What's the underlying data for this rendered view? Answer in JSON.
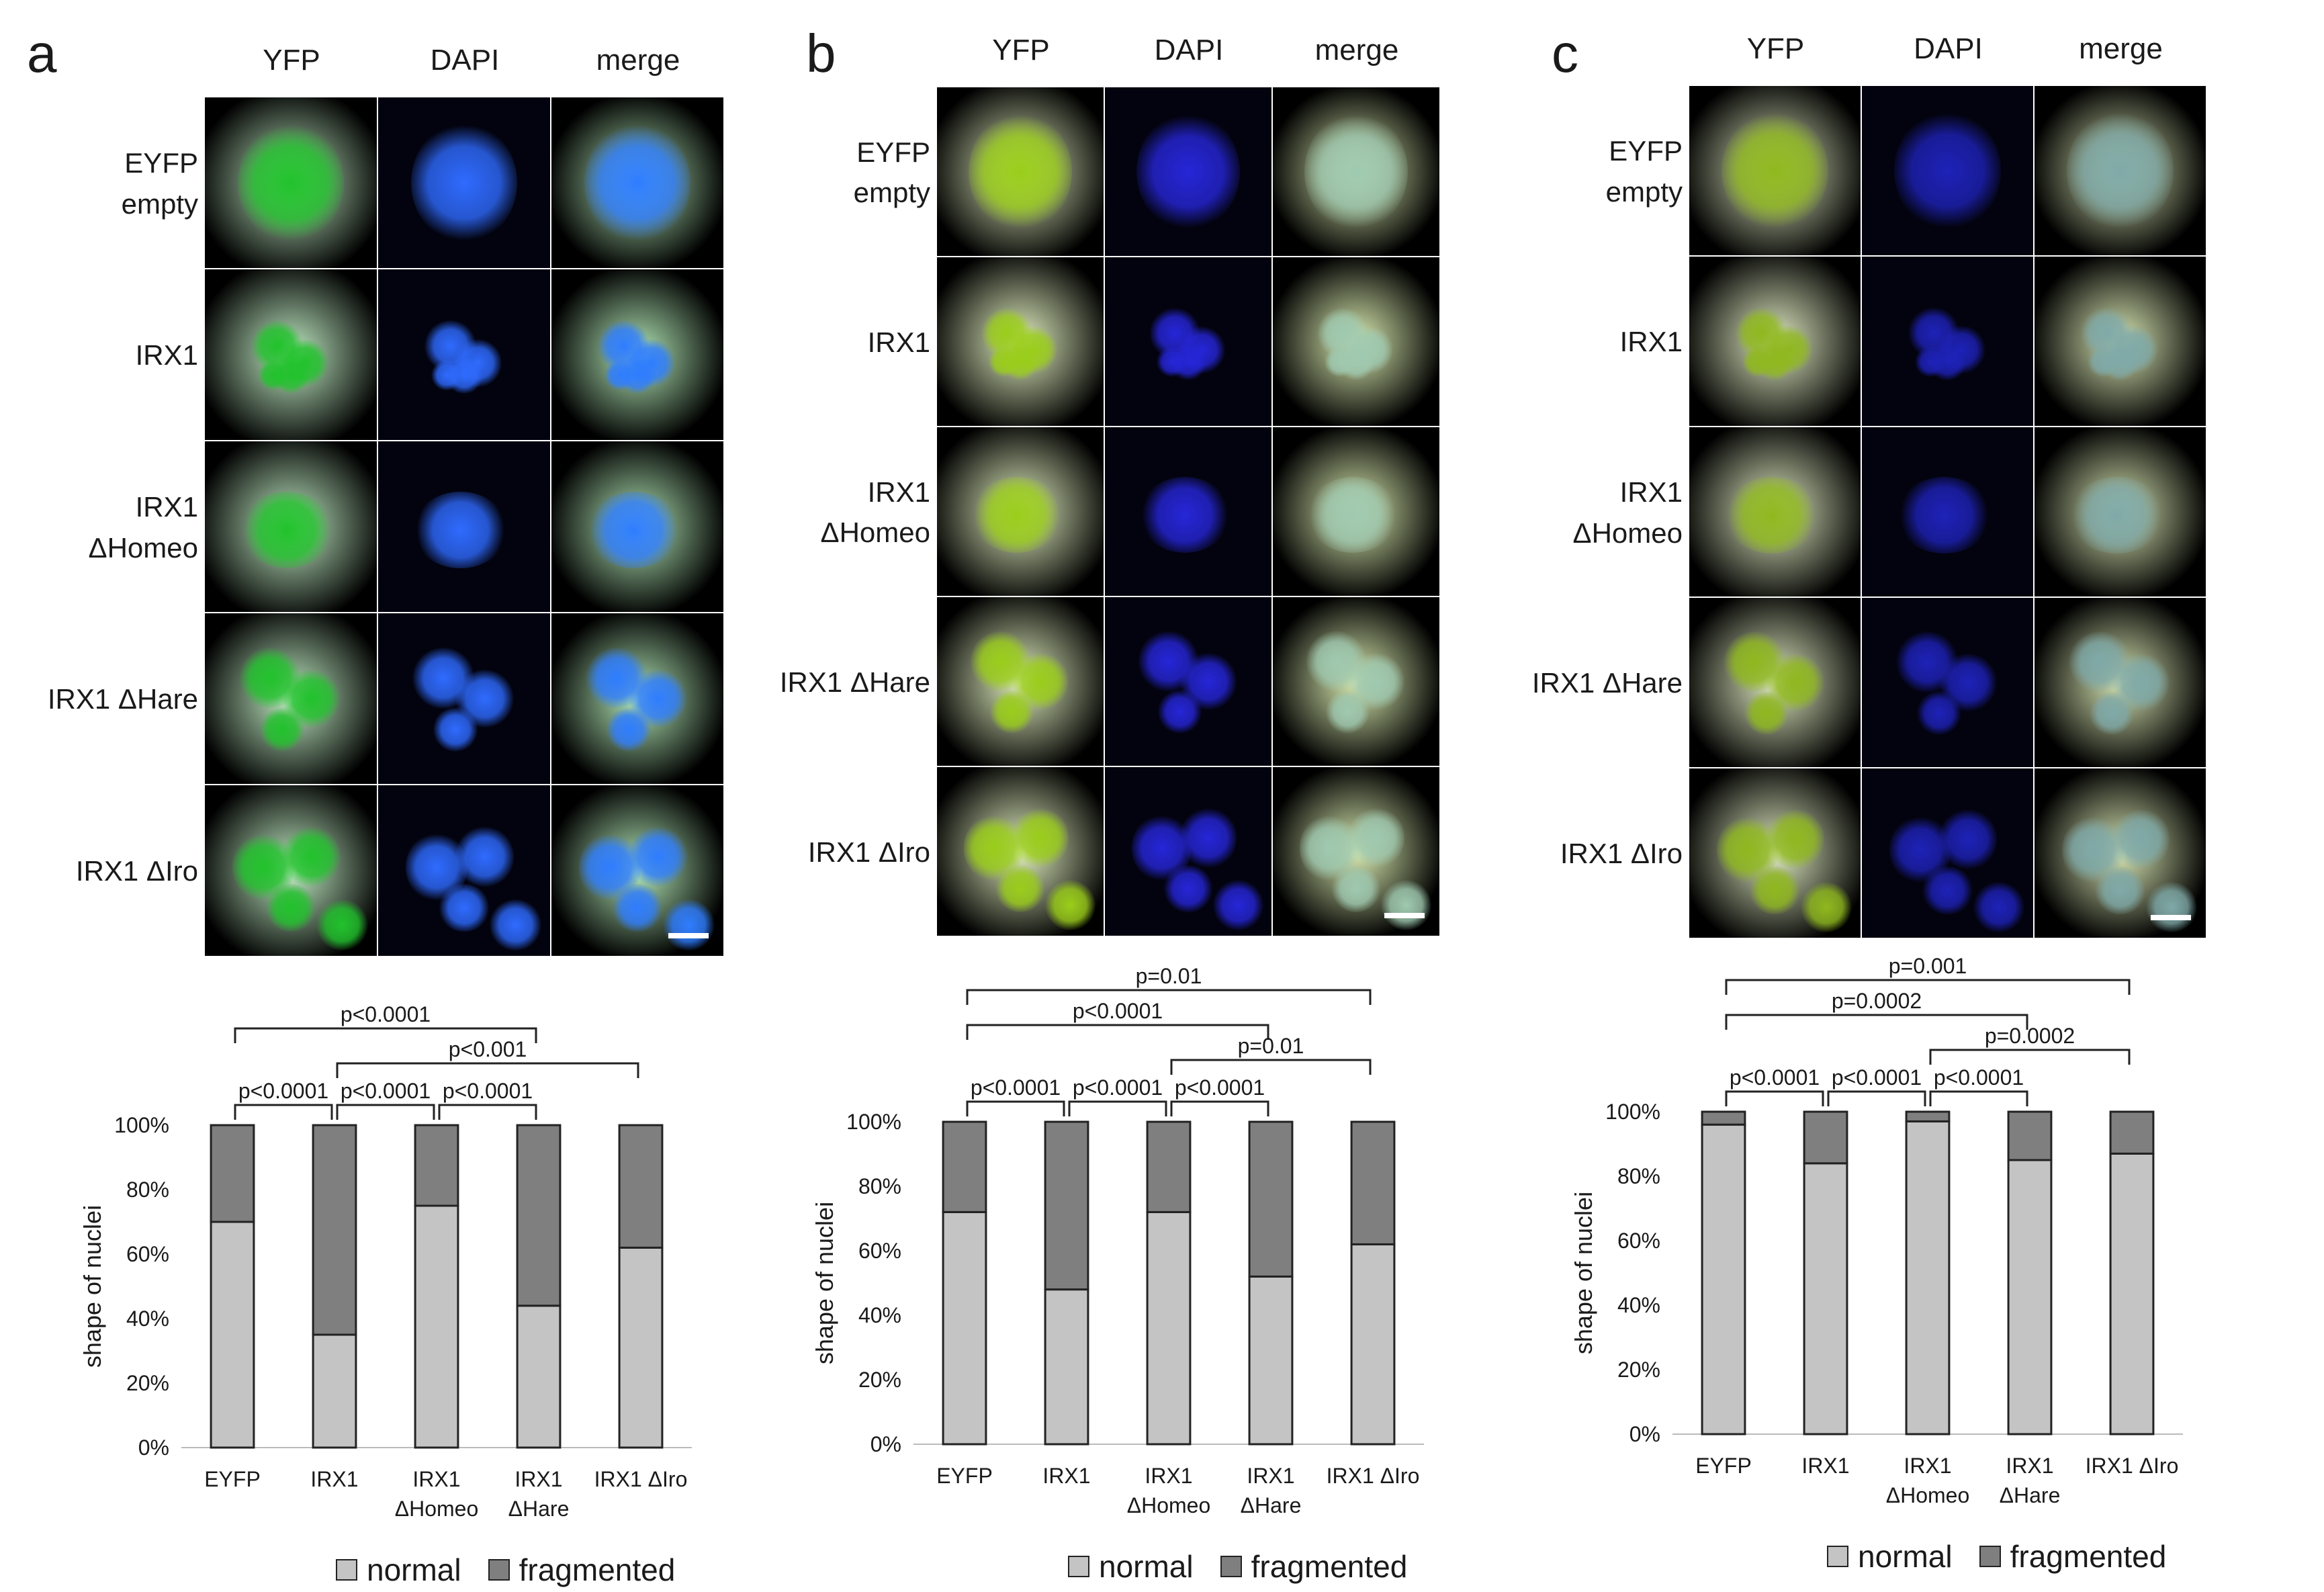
{
  "figure": {
    "columns": [
      "YFP",
      "DAPI",
      "merge"
    ],
    "legend": [
      "normal",
      "fragmented"
    ],
    "colors": {
      "normal": "#c4c4c4",
      "fragmented": "#7f7f7f",
      "bar_stroke": "#222222"
    }
  },
  "panels": [
    {
      "letter": "a",
      "rows": [
        "EYFP\nempty",
        "IRX1",
        "IRX1\nΔHomeo",
        "IRX1 ΔHare",
        "IRX1 ΔIro"
      ],
      "image_tints": {
        "yfp": "#21c22c",
        "dapi": "#2f6bff",
        "merge_core": "#2f7dff"
      },
      "chart_data": {
        "type": "bar",
        "stacked": true,
        "ylabel": "shape of nuclei",
        "yticks": [
          "0%",
          "20%",
          "40%",
          "60%",
          "80%",
          "100%"
        ],
        "ylim": [
          0,
          100
        ],
        "categories": [
          "EYFP",
          "IRX1",
          "IRX1\nΔHomeo",
          "IRX1\nΔHare",
          "IRX1   ΔIro"
        ],
        "series": [
          {
            "name": "normal",
            "values": [
              70,
              35,
              75,
              44,
              62
            ]
          },
          {
            "name": "fragmented",
            "values": [
              30,
              65,
              25,
              56,
              38
            ]
          }
        ],
        "comparisons": [
          {
            "from": 0,
            "to": 3,
            "label": "p<0.0001"
          },
          {
            "from": 1,
            "to": 4,
            "label": "p<0.001"
          },
          {
            "from": 0,
            "to": 1,
            "label": "p<0.0001"
          },
          {
            "from": 1,
            "to": 2,
            "label": "p<0.0001"
          },
          {
            "from": 2,
            "to": 3,
            "label": "p<0.0001"
          }
        ]
      }
    },
    {
      "letter": "b",
      "rows": [
        "EYFP\nempty",
        "IRX1",
        "IRX1\nΔHomeo",
        "IRX1 ΔHare",
        "IRX1 ΔIro"
      ],
      "image_tints": {
        "yfp": "#9acd1a",
        "dapi": "#2626d8",
        "merge_core": "#9fc9b0"
      },
      "chart_data": {
        "type": "bar",
        "stacked": true,
        "ylabel": "shape of nuclei",
        "yticks": [
          "0%",
          "20%",
          "40%",
          "60%",
          "80%",
          "100%"
        ],
        "ylim": [
          0,
          100
        ],
        "categories": [
          "EYFP",
          "IRX1",
          "IRX1\nΔHomeo",
          "IRX1\nΔHare",
          "IRX1   ΔIro"
        ],
        "series": [
          {
            "name": "normal",
            "values": [
              72,
              48,
              72,
              52,
              62
            ]
          },
          {
            "name": "fragmented",
            "values": [
              28,
              52,
              28,
              48,
              38
            ]
          }
        ],
        "comparisons": [
          {
            "from": 0,
            "to": 4,
            "label": "p=0.01"
          },
          {
            "from": 0,
            "to": 3,
            "label": "p<0.0001"
          },
          {
            "from": 2,
            "to": 4,
            "label": "p=0.01"
          },
          {
            "from": 0,
            "to": 1,
            "label": "p<0.0001"
          },
          {
            "from": 1,
            "to": 2,
            "label": "p<0.0001"
          },
          {
            "from": 2,
            "to": 3,
            "label": "p<0.0001"
          }
        ]
      }
    },
    {
      "letter": "c",
      "rows": [
        "EYFP\nempty",
        "IRX1",
        "IRX1\nΔHomeo",
        "IRX1 ΔHare",
        "IRX1 ΔIro"
      ],
      "image_tints": {
        "yfp": "#8fb81e",
        "dapi": "#1e22b8",
        "merge_core": "#7fa9a8"
      },
      "chart_data": {
        "type": "bar",
        "stacked": true,
        "ylabel": "shape of nuclei",
        "yticks": [
          "0%",
          "20%",
          "40%",
          "60%",
          "80%",
          "100%"
        ],
        "ylim": [
          0,
          100
        ],
        "categories": [
          "EYFP",
          "IRX1",
          "IRX1\nΔHomeo",
          "IRX1\nΔHare",
          "IRX1   ΔIro"
        ],
        "series": [
          {
            "name": "normal",
            "values": [
              96,
              84,
              97,
              85,
              87
            ]
          },
          {
            "name": "fragmented",
            "values": [
              4,
              16,
              3,
              15,
              13
            ]
          }
        ],
        "comparisons": [
          {
            "from": 0,
            "to": 4,
            "label": "p=0.001"
          },
          {
            "from": 0,
            "to": 3,
            "label": "p=0.0002"
          },
          {
            "from": 2,
            "to": 4,
            "label": "p=0.0002"
          },
          {
            "from": 0,
            "to": 1,
            "label": "p<0.0001"
          },
          {
            "from": 1,
            "to": 2,
            "label": "p<0.0001"
          },
          {
            "from": 2,
            "to": 3,
            "label": "p<0.0001"
          }
        ]
      }
    }
  ]
}
